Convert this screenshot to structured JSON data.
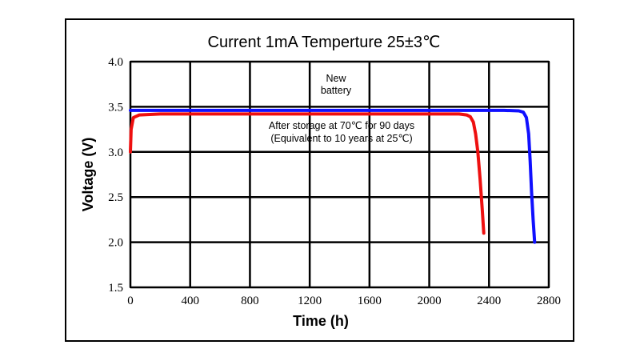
{
  "chart_data": {
    "type": "line",
    "title": "Current 1mA  Temperture 25±3℃",
    "xlabel": "Time (h)",
    "ylabel": "Voltage (V)",
    "xlim": [
      0,
      2800
    ],
    "ylim": [
      1.5,
      4.0
    ],
    "xticks": [
      0,
      400,
      800,
      1200,
      1600,
      2000,
      2400,
      2800
    ],
    "xtick_labels": [
      "0",
      "400",
      "800",
      "1200",
      "1600",
      "2000",
      "2400",
      "2800"
    ],
    "yticks": [
      1.5,
      2.0,
      2.5,
      3.0,
      3.5,
      4.0
    ],
    "ytick_labels": [
      "1.5",
      "2.0",
      "2.5",
      "3.0",
      "3.5",
      "4.0"
    ],
    "grid": true,
    "series": [
      {
        "name": "New battery",
        "color": "#1010ff",
        "x": [
          0,
          200,
          1000,
          2000,
          2500,
          2600,
          2630,
          2650,
          2665,
          2675,
          2685,
          2695,
          2705
        ],
        "y": [
          3.46,
          3.46,
          3.46,
          3.46,
          3.46,
          3.455,
          3.44,
          3.38,
          3.2,
          2.9,
          2.55,
          2.25,
          2.0
        ]
      },
      {
        "name": "After storage",
        "color": "#ee1010",
        "x": [
          0,
          5,
          20,
          60,
          200,
          1000,
          2000,
          2200,
          2250,
          2275,
          2295,
          2310,
          2325,
          2340,
          2355,
          2365
        ],
        "y": [
          3.0,
          3.25,
          3.38,
          3.41,
          3.42,
          3.42,
          3.42,
          3.42,
          3.41,
          3.39,
          3.33,
          3.2,
          3.0,
          2.7,
          2.35,
          2.1
        ]
      }
    ],
    "annotations": {
      "new_line1": "New",
      "new_line2": "battery",
      "storage_line1": "After storage at 70℃ for 90 days",
      "storage_line2": "(Equivalent to 10 years at 25℃)"
    }
  }
}
